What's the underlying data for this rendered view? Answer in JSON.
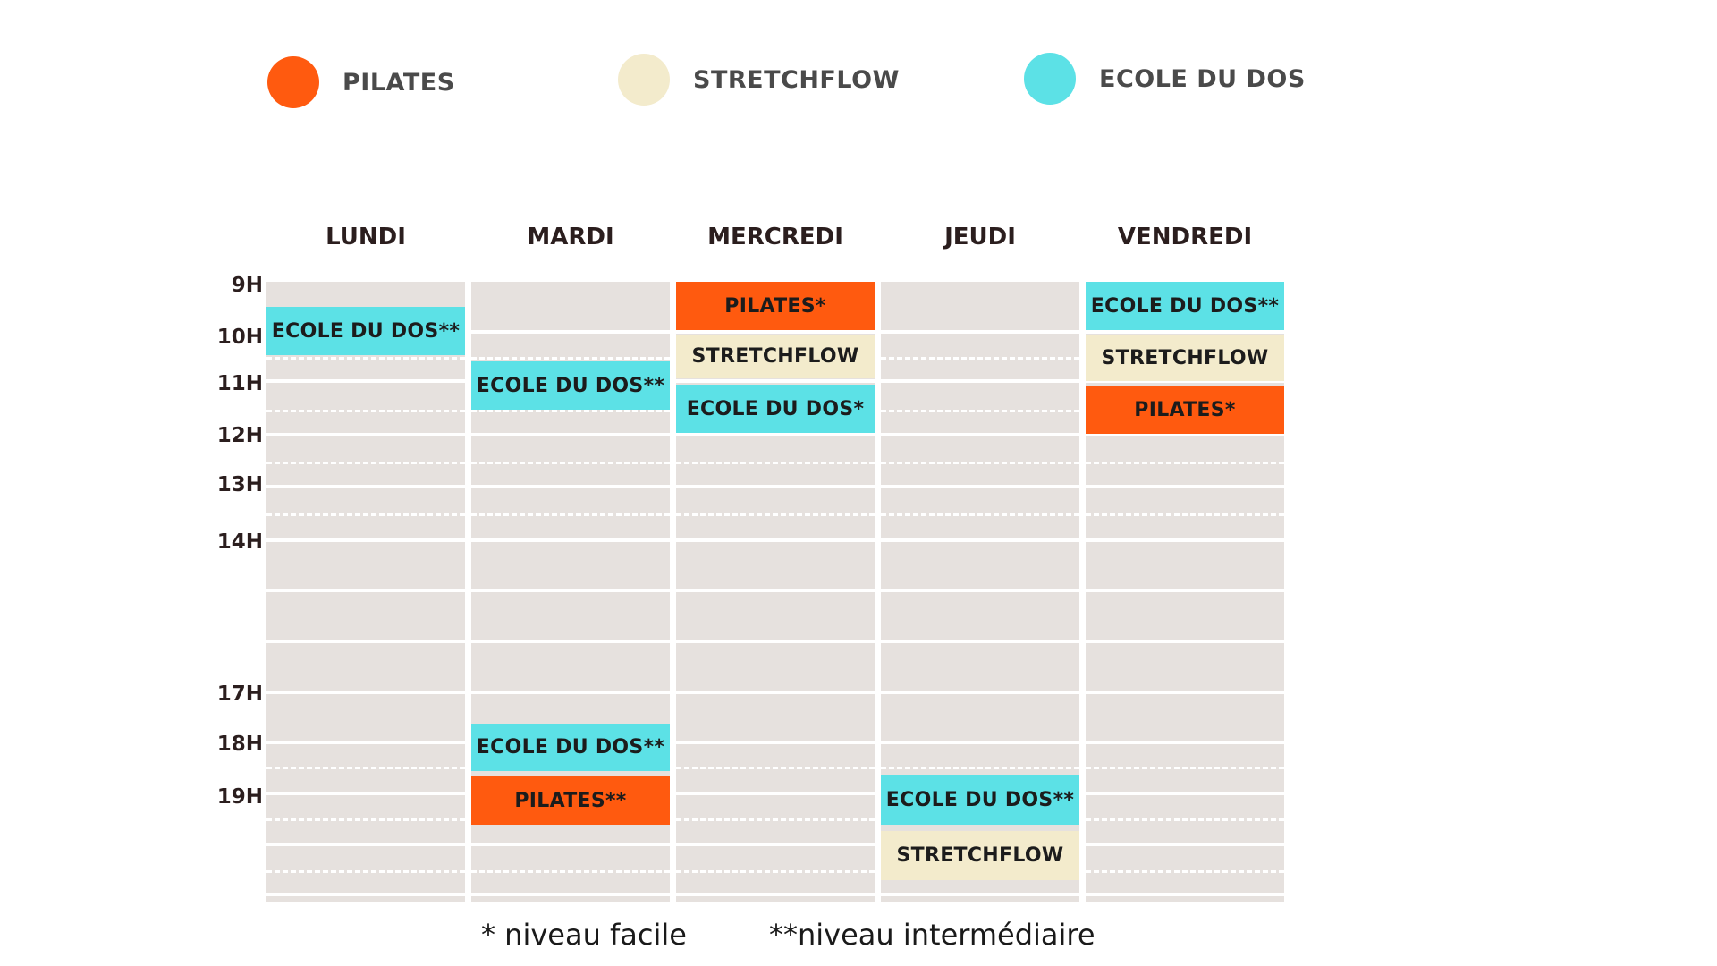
{
  "colors": {
    "pilates": "#ff5a0f",
    "stretchflow": "#f3ebcc",
    "ecole_du_dos": "#5ce1e6",
    "grid_background": "#e6e1de"
  },
  "legend": [
    {
      "label": "PILATES",
      "color_key": "pilates"
    },
    {
      "label": "STRETCHFLOW",
      "color_key": "stretchflow"
    },
    {
      "label": "ECOLE DU DOS",
      "color_key": "ecole_du_dos"
    }
  ],
  "days": [
    "LUNDI",
    "MARDI",
    "MERCREDI",
    "JEUDI",
    "VENDREDI"
  ],
  "hours": [
    "9H",
    "10H",
    "11H",
    "12H",
    "13H",
    "14H",
    "17H",
    "18H",
    "19H"
  ],
  "events": {
    "lundi": [
      {
        "label": "ECOLE DU DOS**",
        "type": "ecole_du_dos"
      }
    ],
    "mardi": [
      {
        "label": "ECOLE DU DOS**",
        "type": "ecole_du_dos"
      },
      {
        "label": "ECOLE DU DOS**",
        "type": "ecole_du_dos"
      },
      {
        "label": "PILATES**",
        "type": "pilates"
      }
    ],
    "mercredi": [
      {
        "label": "PILATES*",
        "type": "pilates"
      },
      {
        "label": "STRETCHFLOW",
        "type": "stretchflow"
      },
      {
        "label": "ECOLE DU DOS*",
        "type": "ecole_du_dos"
      }
    ],
    "jeudi": [
      {
        "label": "ECOLE DU DOS**",
        "type": "ecole_du_dos"
      },
      {
        "label": "STRETCHFLOW",
        "type": "stretchflow"
      }
    ],
    "vendredi": [
      {
        "label": "ECOLE DU DOS**",
        "type": "ecole_du_dos"
      },
      {
        "label": "STRETCHFLOW",
        "type": "stretchflow"
      },
      {
        "label": "PILATES*",
        "type": "pilates"
      }
    ]
  },
  "footnotes": {
    "easy": "* niveau facile",
    "intermediate": "**niveau intermédiaire"
  }
}
